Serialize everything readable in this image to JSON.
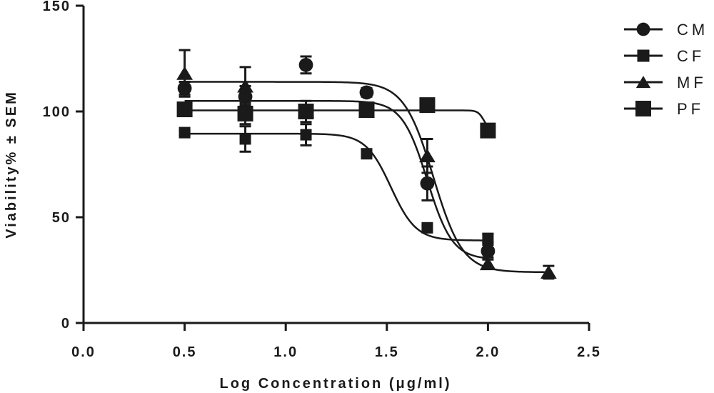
{
  "chart_data": {
    "type": "scatter",
    "title": "",
    "xlabel": "Log Concentration (μg/ml)",
    "ylabel": "Viability% ± SEM",
    "xlim": [
      0.0,
      2.5
    ],
    "ylim": [
      0,
      150
    ],
    "x_ticks": [
      "0.0",
      "0.5",
      "1.0",
      "1.5",
      "2.0",
      "2.5"
    ],
    "y_ticks": [
      "0",
      "50",
      "100",
      "150"
    ],
    "grid": false,
    "legend_position": "right",
    "color": "#1a1a1a",
    "series": [
      {
        "name": "CM",
        "marker": "circle",
        "points": [
          {
            "x": 0.5,
            "y": 111,
            "err": 3
          },
          {
            "x": 0.8,
            "y": 107,
            "err": 5
          },
          {
            "x": 1.1,
            "y": 122,
            "err": 4
          },
          {
            "x": 1.4,
            "y": 109,
            "err": 2
          },
          {
            "x": 1.7,
            "y": 66,
            "err": 8
          },
          {
            "x": 2.0,
            "y": 34,
            "err": 3
          }
        ],
        "fit": {
          "top": 105,
          "bottom": 30,
          "logec50": 1.7,
          "hill": -7
        }
      },
      {
        "name": "CF",
        "marker": "square",
        "points": [
          {
            "x": 0.5,
            "y": 90,
            "err": 1
          },
          {
            "x": 0.8,
            "y": 87,
            "err": 6
          },
          {
            "x": 1.1,
            "y": 89,
            "err": 5
          },
          {
            "x": 1.4,
            "y": 80,
            "err": 1
          },
          {
            "x": 1.7,
            "y": 45,
            "err": 1
          },
          {
            "x": 2.0,
            "y": 40,
            "err": 2
          }
        ],
        "fit": {
          "top": 89.5,
          "bottom": 39,
          "logec50": 1.52,
          "hill": -7
        }
      },
      {
        "name": "MF",
        "marker": "triangle",
        "points": [
          {
            "x": 0.5,
            "y": 118,
            "err": 11
          },
          {
            "x": 0.8,
            "y": 112,
            "err": 9
          },
          {
            "x": 1.1,
            "y": 100,
            "err": 2
          },
          {
            "x": 1.4,
            "y": 100,
            "err": 2
          },
          {
            "x": 1.7,
            "y": 79,
            "err": 8
          },
          {
            "x": 2.0,
            "y": 28,
            "err": 2
          },
          {
            "x": 2.3,
            "y": 24,
            "err": 3
          }
        ],
        "fit": {
          "top": 114,
          "bottom": 24,
          "logec50": 1.73,
          "hill": -6
        }
      },
      {
        "name": "PF",
        "marker": "square",
        "points": [
          {
            "x": 0.5,
            "y": 101,
            "err": 3
          },
          {
            "x": 0.8,
            "y": 99,
            "err": 5
          },
          {
            "x": 1.1,
            "y": 100,
            "err": 5
          },
          {
            "x": 1.4,
            "y": 101,
            "err": 3
          },
          {
            "x": 1.7,
            "y": 103,
            "err": 2
          },
          {
            "x": 2.0,
            "y": 91,
            "err": 3
          }
        ],
        "fit": {
          "top": 100.5,
          "bottom": 91,
          "logec50": 1.98,
          "hill": -30
        }
      }
    ]
  }
}
